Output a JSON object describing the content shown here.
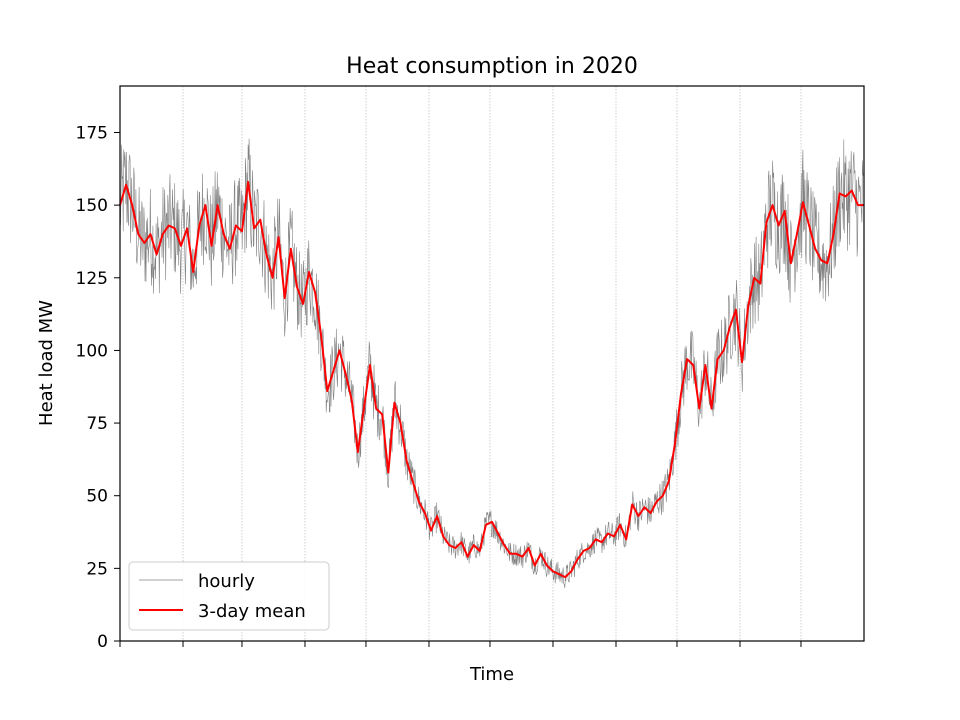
{
  "chart_data": {
    "type": "line",
    "title": "Heat consumption in 2020",
    "xlabel": "Time",
    "ylabel": "Heat load MW",
    "ylim": [
      0,
      191
    ],
    "xlim": [
      0,
      366
    ],
    "y_ticks": [
      0,
      25,
      50,
      75,
      100,
      125,
      150,
      175
    ],
    "x_tick_labels": [],
    "grid": "vertical dotted lines at monthly ticks",
    "legend": {
      "placement": "lower-left",
      "entries": [
        "hourly",
        "3-day mean"
      ]
    },
    "colors": {
      "hourly": "#808080",
      "mean": "#ff0000"
    },
    "series": [
      {
        "name": "hourly",
        "color": "#808080",
        "x": [
          0,
          5,
          10,
          15,
          20,
          25,
          30,
          35,
          40,
          45,
          50,
          55,
          60,
          65,
          70,
          75,
          80,
          85,
          90,
          95,
          100,
          105,
          110,
          115,
          120,
          125,
          130,
          135,
          140,
          145,
          150,
          155,
          160,
          165,
          170,
          175,
          180,
          185,
          190,
          195,
          200,
          205,
          210,
          215,
          220,
          225,
          230,
          235,
          240,
          245,
          250,
          255,
          260,
          265,
          270,
          275,
          280,
          285,
          290,
          295,
          300,
          305,
          310,
          315,
          320,
          325,
          330,
          335,
          340,
          345,
          350,
          355,
          360,
          366
        ],
        "values": [
          152,
          140,
          135,
          141,
          130,
          136,
          145,
          142,
          148,
          140,
          137,
          136,
          126,
          128,
          118,
          122,
          110,
          108,
          90,
          88,
          97,
          84,
          75,
          68,
          79,
          71,
          62,
          52,
          45,
          42,
          38,
          33,
          30,
          31,
          33,
          40,
          40,
          35,
          31,
          30,
          29,
          27,
          24,
          22,
          27,
          31,
          34,
          36,
          38,
          40,
          43,
          46,
          46,
          53,
          75,
          95,
          91,
          80,
          95,
          88,
          103,
          107,
          122,
          133,
          147,
          150,
          140,
          142,
          148,
          133,
          131,
          138,
          154,
          150
        ],
        "spread": 12
      },
      {
        "name": "3-day mean",
        "color": "#ff0000",
        "x": [
          0,
          3,
          6,
          9,
          12,
          15,
          18,
          21,
          24,
          27,
          30,
          33,
          36,
          39,
          42,
          45,
          48,
          51,
          54,
          57,
          60,
          63,
          66,
          69,
          72,
          75,
          78,
          81,
          84,
          87,
          90,
          93,
          96,
          99,
          102,
          105,
          108,
          111,
          114,
          117,
          120,
          123,
          126,
          129,
          132,
          135,
          138,
          141,
          144,
          147,
          150,
          153,
          156,
          159,
          162,
          165,
          168,
          171,
          174,
          177,
          180,
          183,
          186,
          189,
          192,
          195,
          198,
          201,
          204,
          207,
          210,
          213,
          216,
          219,
          222,
          225,
          228,
          231,
          234,
          237,
          240,
          243,
          246,
          249,
          252,
          255,
          258,
          261,
          264,
          267,
          270,
          273,
          276,
          279,
          282,
          285,
          288,
          291,
          294,
          297,
          300,
          303,
          306,
          309,
          312,
          315,
          318,
          321,
          324,
          327,
          330,
          333,
          336,
          339,
          342,
          345,
          348,
          351,
          354,
          357,
          360,
          363,
          366
        ],
        "values": [
          150,
          157,
          150,
          140,
          137,
          140,
          133,
          140,
          143,
          142,
          136,
          142,
          127,
          143,
          150,
          136,
          150,
          140,
          135,
          143,
          141,
          158,
          142,
          145,
          133,
          125,
          139,
          118,
          135,
          122,
          116,
          127,
          120,
          105,
          86,
          93,
          100,
          92,
          83,
          65,
          80,
          95,
          80,
          78,
          58,
          82,
          75,
          62,
          55,
          48,
          44,
          38,
          43,
          36,
          33,
          32,
          34,
          29,
          33,
          31,
          40,
          41,
          37,
          33,
          30,
          30,
          29,
          32,
          26,
          30,
          26,
          24,
          23,
          22,
          24,
          28,
          31,
          32,
          35,
          34,
          37,
          36,
          40,
          35,
          47,
          43,
          46,
          44,
          48,
          50,
          55,
          68,
          85,
          97,
          95,
          80,
          95,
          80,
          97,
          100,
          108,
          114,
          96,
          115,
          125,
          123,
          144,
          150,
          143,
          148,
          130,
          140,
          151,
          143,
          135,
          131,
          130,
          140,
          154,
          153,
          155,
          150,
          150
        ]
      }
    ]
  }
}
